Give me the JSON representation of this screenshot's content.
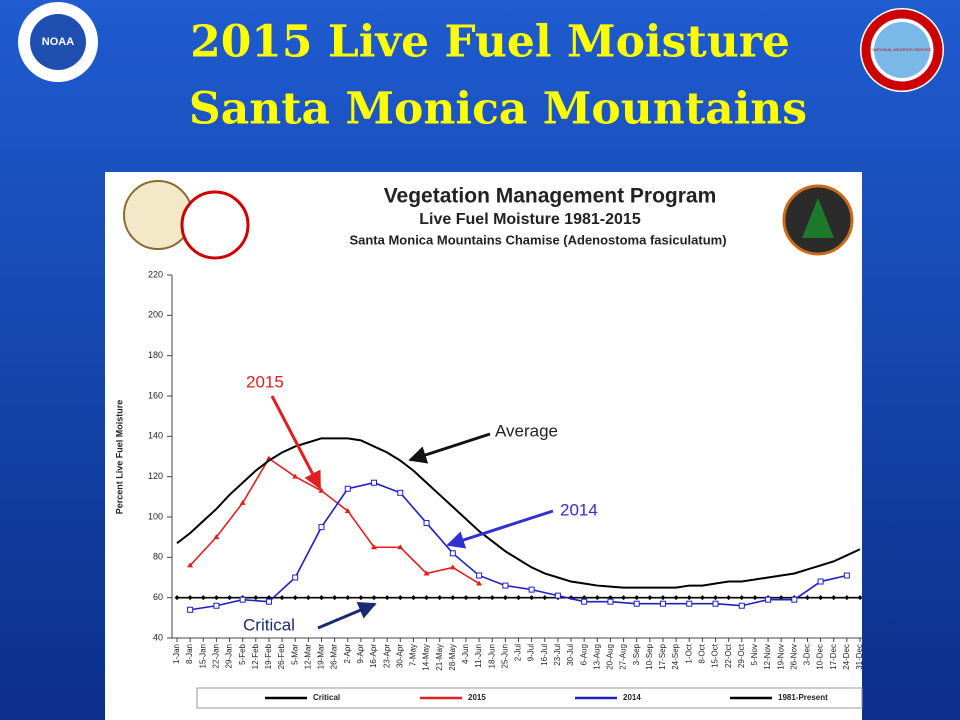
{
  "slide_title": [
    "2015 Live Fuel Moisture",
    "Santa Monica Mountains"
  ],
  "logos": {
    "left": "NOAA",
    "right": "NATIONAL WEATHER SERVICE"
  },
  "chart_data": {
    "type": "line",
    "title": "Vegetation Management Program",
    "subtitle": "Live Fuel Moisture 1981-2015",
    "subtitle2": "Santa Monica Mountains Chamise (Adenostoma fasiculatum)",
    "y_label": "Percent Live Fuel Moisture",
    "ylim": [
      40,
      220
    ],
    "yticks": [
      40,
      60,
      80,
      100,
      120,
      140,
      160,
      180,
      200,
      220
    ],
    "categories": [
      "1-Jan",
      "8-Jan",
      "15-Jan",
      "22-Jan",
      "29-Jan",
      "5-Feb",
      "12-Feb",
      "19-Feb",
      "26-Feb",
      "5-Mar",
      "12-Mar",
      "19-Mar",
      "26-Mar",
      "2-Apr",
      "9-Apr",
      "16-Apr",
      "23-Apr",
      "30-Apr",
      "7-May",
      "14-May",
      "21-May",
      "28-May",
      "4-Jun",
      "11-Jun",
      "18-Jun",
      "25-Jun",
      "2-Jul",
      "9-Jul",
      "16-Jul",
      "23-Jul",
      "30-Jul",
      "6-Aug",
      "13-Aug",
      "20-Aug",
      "27-Aug",
      "3-Sep",
      "10-Sep",
      "17-Sep",
      "24-Sep",
      "1-Oct",
      "8-Oct",
      "15-Oct",
      "22-Oct",
      "29-Oct",
      "5-Nov",
      "12-Nov",
      "19-Nov",
      "26-Nov",
      "3-Dec",
      "10-Dec",
      "17-Dec",
      "24-Dec",
      "31-Dec"
    ],
    "series": [
      {
        "name": "Critical",
        "color": "#000000",
        "marker": "diamond",
        "x": [
          "1-Jan",
          "8-Jan",
          "15-Jan",
          "22-Jan",
          "29-Jan",
          "5-Feb",
          "12-Feb",
          "19-Feb",
          "26-Feb",
          "5-Mar",
          "12-Mar",
          "19-Mar",
          "26-Mar",
          "2-Apr",
          "9-Apr",
          "16-Apr",
          "23-Apr",
          "30-Apr",
          "7-May",
          "14-May",
          "21-May",
          "28-May",
          "4-Jun",
          "11-Jun",
          "18-Jun",
          "25-Jun",
          "2-Jul",
          "9-Jul",
          "16-Jul",
          "23-Jul",
          "30-Jul",
          "6-Aug",
          "13-Aug",
          "20-Aug",
          "27-Aug",
          "3-Sep",
          "10-Sep",
          "17-Sep",
          "24-Sep",
          "1-Oct",
          "8-Oct",
          "15-Oct",
          "22-Oct",
          "29-Oct",
          "5-Nov",
          "12-Nov",
          "19-Nov",
          "26-Nov",
          "3-Dec",
          "10-Dec",
          "17-Dec",
          "24-Dec",
          "31-Dec"
        ],
        "values": [
          60,
          60,
          60,
          60,
          60,
          60,
          60,
          60,
          60,
          60,
          60,
          60,
          60,
          60,
          60,
          60,
          60,
          60,
          60,
          60,
          60,
          60,
          60,
          60,
          60,
          60,
          60,
          60,
          60,
          60,
          60,
          60,
          60,
          60,
          60,
          60,
          60,
          60,
          60,
          60,
          60,
          60,
          60,
          60,
          60,
          60,
          60,
          60,
          60,
          60,
          60,
          60,
          60
        ]
      },
      {
        "name": "2015",
        "color": "#e02020",
        "marker": "triangle",
        "x": [
          "8-Jan",
          "22-Jan",
          "5-Feb",
          "19-Feb",
          "5-Mar",
          "19-Mar",
          "2-Apr",
          "16-Apr",
          "30-Apr",
          "14-May",
          "28-May",
          "11-Jun"
        ],
        "values": [
          76,
          90,
          107,
          129,
          120,
          113,
          103,
          85,
          85,
          72,
          75,
          67
        ]
      },
      {
        "name": "2014",
        "color": "#2020c0",
        "marker": "square",
        "x": [
          "8-Jan",
          "22-Jan",
          "5-Feb",
          "19-Feb",
          "5-Mar",
          "19-Mar",
          "2-Apr",
          "16-Apr",
          "30-Apr",
          "14-May",
          "28-May",
          "11-Jun",
          "25-Jun",
          "9-Jul",
          "23-Jul",
          "6-Aug",
          "20-Aug",
          "3-Sep",
          "17-Sep",
          "1-Oct",
          "15-Oct",
          "29-Oct",
          "12-Nov",
          "26-Nov",
          "10-Dec",
          "24-Dec"
        ],
        "values": [
          54,
          56,
          59,
          58,
          70,
          95,
          114,
          117,
          112,
          97,
          82,
          71,
          66,
          64,
          61,
          58,
          58,
          57,
          57,
          57,
          57,
          56,
          59,
          59,
          68,
          71
        ]
      },
      {
        "name": "1981-Present",
        "color": "#000000",
        "marker": "none",
        "x": [
          "1-Jan",
          "8-Jan",
          "15-Jan",
          "22-Jan",
          "29-Jan",
          "5-Feb",
          "12-Feb",
          "19-Feb",
          "26-Feb",
          "5-Mar",
          "12-Mar",
          "19-Mar",
          "26-Mar",
          "2-Apr",
          "9-Apr",
          "16-Apr",
          "23-Apr",
          "30-Apr",
          "7-May",
          "14-May",
          "21-May",
          "28-May",
          "4-Jun",
          "11-Jun",
          "18-Jun",
          "25-Jun",
          "2-Jul",
          "9-Jul",
          "16-Jul",
          "23-Jul",
          "30-Jul",
          "6-Aug",
          "13-Aug",
          "20-Aug",
          "27-Aug",
          "3-Sep",
          "10-Sep",
          "17-Sep",
          "24-Sep",
          "1-Oct",
          "8-Oct",
          "15-Oct",
          "22-Oct",
          "29-Oct",
          "5-Nov",
          "12-Nov",
          "19-Nov",
          "26-Nov",
          "3-Dec",
          "10-Dec",
          "17-Dec",
          "24-Dec",
          "31-Dec"
        ],
        "values": [
          87,
          92,
          98,
          104,
          111,
          117,
          123,
          128,
          132,
          135,
          137,
          139,
          139,
          139,
          138,
          135,
          132,
          128,
          123,
          117,
          111,
          105,
          99,
          93,
          88,
          83,
          79,
          75,
          72,
          70,
          68,
          67,
          66,
          65.5,
          65,
          65,
          65,
          65,
          65,
          66,
          66,
          67,
          68,
          68,
          69,
          70,
          71,
          72,
          74,
          76,
          78,
          81,
          84
        ]
      }
    ],
    "annotations": [
      "2015",
      "Average",
      "2014",
      "Critical"
    ],
    "legend": "bottom"
  }
}
